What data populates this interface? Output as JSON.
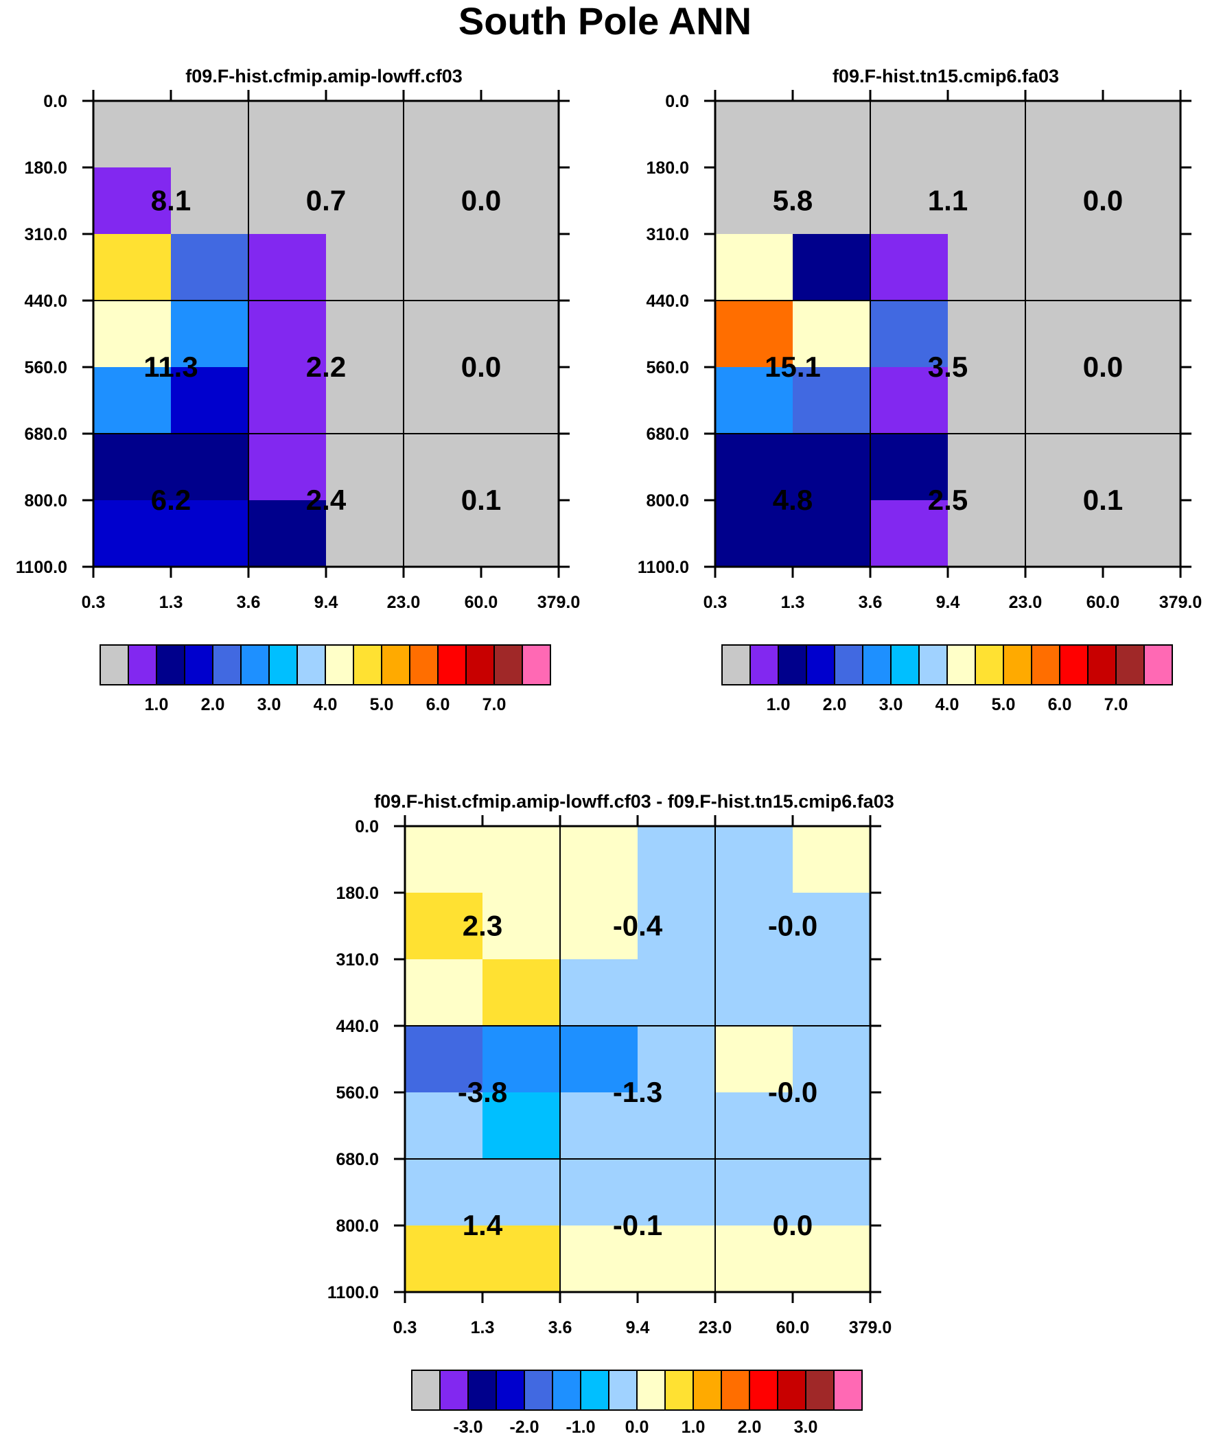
{
  "page": {
    "title": "South Pole ANN"
  },
  "palettes": {
    "colors": [
      "#c8c8c8",
      "#8228f0",
      "#00008c",
      "#0000cd",
      "#4169e1",
      "#1e90ff",
      "#00bfff",
      "#a0d2ff",
      "#ffffc8",
      "#ffe132",
      "#ffaa00",
      "#ff6e00",
      "#ff0000",
      "#c80000",
      "#a02828",
      "#ff69b4"
    ]
  },
  "chart_data": [
    {
      "type": "heatmap",
      "id": "panel1",
      "title": "f09.F-hist.cfmip.amip-lowff.cf03",
      "x_ticks": [
        "0.3",
        "1.3",
        "3.6",
        "9.4",
        "23.0",
        "60.0",
        "379.0"
      ],
      "y_ticks": [
        "0.0",
        "180.0",
        "310.0",
        "440.0",
        "560.0",
        "680.0",
        "800.0",
        "1100.0"
      ],
      "cell_colors": [
        [
          0,
          0,
          0,
          0,
          0,
          0
        ],
        [
          1,
          0,
          0,
          0,
          0,
          0
        ],
        [
          9,
          4,
          1,
          0,
          0,
          0
        ],
        [
          8,
          5,
          1,
          0,
          0,
          0
        ],
        [
          5,
          3,
          1,
          0,
          0,
          0
        ],
        [
          2,
          2,
          1,
          0,
          0,
          0
        ],
        [
          3,
          3,
          2,
          0,
          0,
          0
        ]
      ],
      "block_values": [
        [
          "8.1",
          "0.7",
          "0.0"
        ],
        [
          "11.3",
          "2.2",
          "0.0"
        ],
        [
          "6.2",
          "2.4",
          "0.1"
        ]
      ],
      "colorbar_labels": [
        "1.0",
        "2.0",
        "3.0",
        "4.0",
        "5.0",
        "6.0",
        "7.0"
      ]
    },
    {
      "type": "heatmap",
      "id": "panel2",
      "title": "f09.F-hist.tn15.cmip6.fa03",
      "x_ticks": [
        "0.3",
        "1.3",
        "3.6",
        "9.4",
        "23.0",
        "60.0",
        "379.0"
      ],
      "y_ticks": [
        "0.0",
        "180.0",
        "310.0",
        "440.0",
        "560.0",
        "680.0",
        "800.0",
        "1100.0"
      ],
      "cell_colors": [
        [
          0,
          0,
          0,
          0,
          0,
          0
        ],
        [
          0,
          0,
          0,
          0,
          0,
          0
        ],
        [
          8,
          2,
          1,
          0,
          0,
          0
        ],
        [
          11,
          8,
          4,
          0,
          0,
          0
        ],
        [
          5,
          4,
          1,
          0,
          0,
          0
        ],
        [
          2,
          2,
          2,
          0,
          0,
          0
        ],
        [
          2,
          2,
          1,
          0,
          0,
          0
        ]
      ],
      "block_values": [
        [
          "5.8",
          "1.1",
          "0.0"
        ],
        [
          "15.1",
          "3.5",
          "0.0"
        ],
        [
          "4.8",
          "2.5",
          "0.1"
        ]
      ],
      "colorbar_labels": [
        "1.0",
        "2.0",
        "3.0",
        "4.0",
        "5.0",
        "6.0",
        "7.0"
      ]
    },
    {
      "type": "heatmap",
      "id": "panel3",
      "title": "f09.F-hist.cfmip.amip-lowff.cf03 - f09.F-hist.tn15.cmip6.fa03",
      "x_ticks": [
        "0.3",
        "1.3",
        "3.6",
        "9.4",
        "23.0",
        "60.0",
        "379.0"
      ],
      "y_ticks": [
        "0.0",
        "180.0",
        "310.0",
        "440.0",
        "560.0",
        "680.0",
        "800.0",
        "1100.0"
      ],
      "cell_colors": [
        [
          8,
          8,
          8,
          7,
          7,
          8
        ],
        [
          9,
          8,
          8,
          7,
          7,
          7
        ],
        [
          8,
          9,
          7,
          7,
          7,
          7
        ],
        [
          4,
          5,
          5,
          7,
          8,
          7
        ],
        [
          7,
          6,
          7,
          7,
          7,
          7
        ],
        [
          7,
          7,
          7,
          7,
          7,
          7
        ],
        [
          9,
          9,
          8,
          8,
          8,
          8
        ]
      ],
      "block_values": [
        [
          "2.3",
          "-0.4",
          "-0.0"
        ],
        [
          "-3.8",
          "-1.3",
          "-0.0"
        ],
        [
          "1.4",
          "-0.1",
          "0.0"
        ]
      ],
      "colorbar_labels": [
        "-3.0",
        "-2.0",
        "-1.0",
        "0.0",
        "1.0",
        "2.0",
        "3.0"
      ]
    }
  ]
}
